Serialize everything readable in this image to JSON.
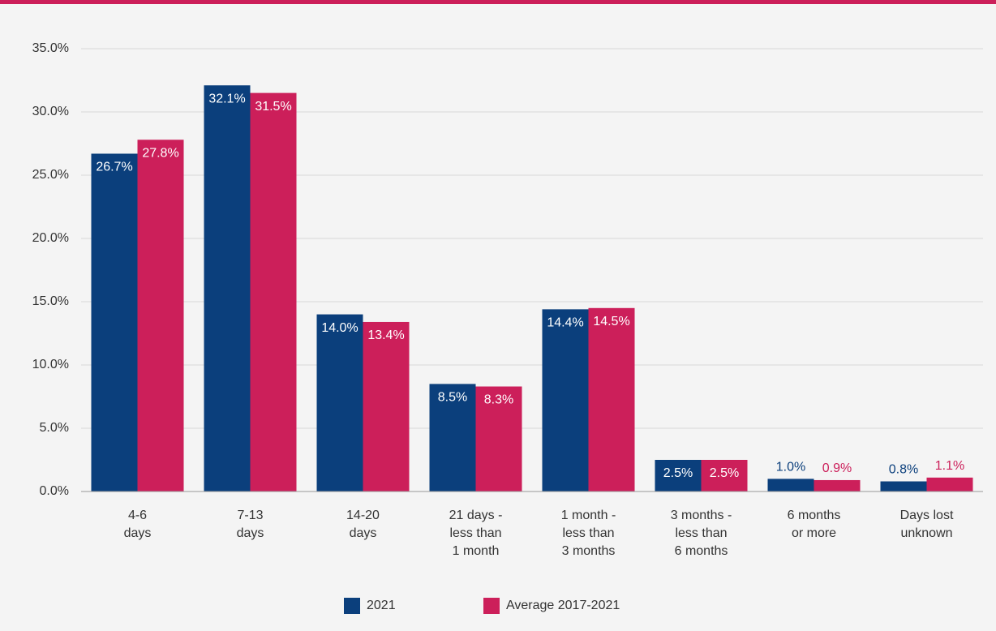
{
  "chart_data": {
    "type": "bar",
    "categories": [
      [
        "4-6",
        "days"
      ],
      [
        "7-13",
        "days"
      ],
      [
        "14-20",
        "days"
      ],
      [
        "21 days -",
        "less than",
        "1 month"
      ],
      [
        "1 month -",
        "less than",
        "3 months"
      ],
      [
        "3 months -",
        "less than",
        "6 months"
      ],
      [
        "6 months",
        "or more"
      ],
      [
        "Days lost",
        "unknown"
      ]
    ],
    "series": [
      {
        "name": "2021",
        "color": "#0b3f7c",
        "values": [
          26.7,
          32.1,
          14.0,
          8.5,
          14.4,
          2.5,
          1.0,
          0.8
        ],
        "value_labels": [
          "26.7%",
          "32.1%",
          "14.0%",
          "8.5%",
          "14.4%",
          "2.5%",
          "1.0%",
          "0.8%"
        ]
      },
      {
        "name": "Average 2017-2021",
        "color": "#cc1f5a",
        "values": [
          27.8,
          31.5,
          13.4,
          8.3,
          14.5,
          2.5,
          0.9,
          1.1
        ],
        "value_labels": [
          "27.8%",
          "31.5%",
          "13.4%",
          "8.3%",
          "14.5%",
          "2.5%",
          "0.9%",
          "1.1%"
        ]
      }
    ],
    "ylim": [
      0,
      35
    ],
    "yticks": [
      {
        "value": 0,
        "label": "0.0%"
      },
      {
        "value": 5,
        "label": "5.0%"
      },
      {
        "value": 10,
        "label": "10.0%"
      },
      {
        "value": 15,
        "label": "15.0%"
      },
      {
        "value": 20,
        "label": "20.0%"
      },
      {
        "value": 25,
        "label": "25.0%"
      },
      {
        "value": 30,
        "label": "30.0%"
      },
      {
        "value": 35,
        "label": "35.0%"
      }
    ],
    "grid": true,
    "legend": "bottom"
  }
}
